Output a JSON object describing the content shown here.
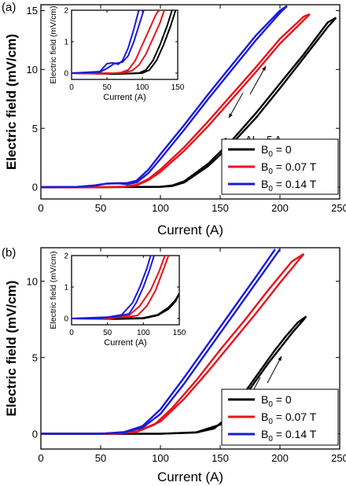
{
  "colors": {
    "b0_0": "#000000",
    "b0_007": "#e8141b",
    "b0_014": "#1a1ad8",
    "axis": "#000000"
  },
  "chart_data": [
    {
      "type": "line",
      "panel_label": "(a)",
      "xlabel": "Current (A)",
      "ylabel": "Electric field (mV/cm)",
      "xlim": [
        0,
        250
      ],
      "ylim": [
        -1,
        15.5
      ],
      "xticks": [
        0,
        50,
        100,
        150,
        200,
        250
      ],
      "yticks": [
        0,
        5,
        10,
        15
      ],
      "legend_position": "bottom-right",
      "annotation": "ΔI ~ 5 A",
      "series": [
        {
          "name": "B0 = 0",
          "color_key": "b0_0",
          "up": [
            [
              0,
              0
            ],
            [
              50,
              0
            ],
            [
              100,
              0.02
            ],
            [
              110,
              0.1
            ],
            [
              120,
              0.4
            ],
            [
              140,
              1.8
            ],
            [
              160,
              3.7
            ],
            [
              180,
              5.9
            ],
            [
              200,
              8.4
            ],
            [
              220,
              11.0
            ],
            [
              240,
              13.6
            ],
            [
              247,
              14.4
            ]
          ],
          "down": [
            [
              247,
              14.4
            ],
            [
              240,
              14.0
            ],
            [
              220,
              11.3
            ],
            [
              200,
              8.8
            ],
            [
              180,
              6.3
            ],
            [
              160,
              4.0
            ],
            [
              140,
              2.0
            ],
            [
              120,
              0.5
            ],
            [
              110,
              0.15
            ],
            [
              100,
              0.04
            ],
            [
              50,
              0
            ],
            [
              0,
              0
            ]
          ]
        },
        {
          "name": "B0 = 0.07 T",
          "color_key": "b0_007",
          "up": [
            [
              0,
              0
            ],
            [
              50,
              0
            ],
            [
              70,
              0.03
            ],
            [
              80,
              0.15
            ],
            [
              90,
              0.6
            ],
            [
              100,
              1.3
            ],
            [
              120,
              3.1
            ],
            [
              140,
              5.2
            ],
            [
              160,
              7.5
            ],
            [
              180,
              9.8
            ],
            [
              200,
              12.2
            ],
            [
              220,
              14.2
            ],
            [
              225,
              14.7
            ]
          ],
          "down": [
            [
              225,
              14.7
            ],
            [
              220,
              14.5
            ],
            [
              200,
              12.6
            ],
            [
              180,
              10.2
            ],
            [
              160,
              7.9
            ],
            [
              140,
              5.6
            ],
            [
              120,
              3.4
            ],
            [
              100,
              1.5
            ],
            [
              90,
              0.7
            ],
            [
              80,
              0.2
            ],
            [
              70,
              0.05
            ],
            [
              50,
              0
            ],
            [
              0,
              0
            ]
          ]
        },
        {
          "name": "B0 = 0.14 T",
          "color_key": "b0_014",
          "up": [
            [
              0,
              0
            ],
            [
              30,
              0.02
            ],
            [
              45,
              0.15
            ],
            [
              55,
              0.3
            ],
            [
              65,
              0.32
            ],
            [
              72,
              0.25
            ],
            [
              80,
              0.4
            ],
            [
              90,
              1.2
            ],
            [
              100,
              2.4
            ],
            [
              120,
              4.9
            ],
            [
              140,
              7.5
            ],
            [
              160,
              10.0
            ],
            [
              180,
              12.5
            ],
            [
              200,
              14.8
            ],
            [
              206,
              15.4
            ]
          ],
          "down": [
            [
              206,
              15.4
            ],
            [
              200,
              15.0
            ],
            [
              180,
              12.9
            ],
            [
              160,
              10.4
            ],
            [
              140,
              7.9
            ],
            [
              120,
              5.3
            ],
            [
              100,
              2.8
            ],
            [
              90,
              1.5
            ],
            [
              80,
              0.55
            ],
            [
              72,
              0.35
            ],
            [
              65,
              0.35
            ],
            [
              55,
              0.3
            ],
            [
              45,
              0.15
            ],
            [
              30,
              0.02
            ],
            [
              0,
              0
            ]
          ]
        }
      ],
      "inset": {
        "xlabel": "Current (A)",
        "ylabel": "Electric field (mV/cm)",
        "xlim": [
          0,
          150
        ],
        "ylim": [
          -0.2,
          2
        ],
        "xticks": [
          0,
          50,
          100,
          150
        ],
        "yticks": [
          0,
          1,
          2
        ],
        "series": [
          {
            "color_key": "b0_0",
            "up": [
              [
                0,
                0
              ],
              [
                60,
                -0.03
              ],
              [
                95,
                0
              ],
              [
                105,
                0.1
              ],
              [
                115,
                0.4
              ],
              [
                125,
                0.9
              ],
              [
                135,
                1.5
              ],
              [
                142,
                2.0
              ]
            ],
            "down": [
              [
                147,
                2.0
              ],
              [
                140,
                1.5
              ],
              [
                130,
                0.9
              ],
              [
                120,
                0.4
              ],
              [
                110,
                0.1
              ],
              [
                100,
                0
              ],
              [
                70,
                -0.02
              ],
              [
                0,
                0
              ]
            ]
          },
          {
            "color_key": "b0_007",
            "up": [
              [
                0,
                0
              ],
              [
                50,
                -0.02
              ],
              [
                70,
                0.02
              ],
              [
                80,
                0.1
              ],
              [
                90,
                0.4
              ],
              [
                100,
                0.9
              ],
              [
                110,
                1.4
              ],
              [
                120,
                1.9
              ],
              [
                124,
                2.0
              ]
            ],
            "down": [
              [
                131,
                2.0
              ],
              [
                125,
                1.6
              ],
              [
                115,
                1.1
              ],
              [
                105,
                0.6
              ],
              [
                95,
                0.25
              ],
              [
                85,
                0.07
              ],
              [
                70,
                0
              ],
              [
                0,
                0
              ]
            ]
          },
          {
            "color_key": "b0_014",
            "up": [
              [
                0,
                0
              ],
              [
                40,
                0.05
              ],
              [
                50,
                0.3
              ],
              [
                58,
                0.33
              ],
              [
                66,
                0.28
              ],
              [
                72,
                0.4
              ],
              [
                80,
                0.8
              ],
              [
                88,
                1.4
              ],
              [
                95,
                2.0
              ]
            ],
            "down": [
              [
                102,
                2.0
              ],
              [
                95,
                1.5
              ],
              [
                88,
                1.0
              ],
              [
                80,
                0.55
              ],
              [
                72,
                0.35
              ],
              [
                60,
                0.3
              ],
              [
                50,
                0.15
              ],
              [
                40,
                0.03
              ],
              [
                0,
                0
              ]
            ]
          }
        ]
      }
    },
    {
      "type": "line",
      "panel_label": "(b)",
      "xlabel": "Current (A)",
      "ylabel": "Electric field (mV/cm)",
      "xlim": [
        0,
        250
      ],
      "ylim": [
        -1,
        12.2
      ],
      "xticks": [
        0,
        50,
        100,
        150,
        200,
        250
      ],
      "yticks": [
        0,
        5,
        10
      ],
      "legend_position": "bottom-right",
      "series": [
        {
          "name": "B0 = 0",
          "color_key": "b0_0",
          "up": [
            [
              0,
              0
            ],
            [
              100,
              0
            ],
            [
              130,
              0.1
            ],
            [
              150,
              0.6
            ],
            [
              160,
              1.3
            ],
            [
              170,
              2.4
            ],
            [
              180,
              3.5
            ],
            [
              190,
              4.6
            ],
            [
              200,
              5.6
            ],
            [
              210,
              6.6
            ],
            [
              220,
              7.5
            ],
            [
              222,
              7.7
            ]
          ],
          "down": [
            [
              222,
              7.7
            ],
            [
              215,
              7.3
            ],
            [
              205,
              6.4
            ],
            [
              195,
              5.4
            ],
            [
              185,
              4.3
            ],
            [
              175,
              3.2
            ],
            [
              165,
              2.1
            ],
            [
              155,
              1.0
            ],
            [
              145,
              0.35
            ],
            [
              130,
              0.08
            ],
            [
              100,
              0
            ],
            [
              0,
              0
            ]
          ]
        },
        {
          "name": "B0 = 0.07 T",
          "color_key": "b0_007",
          "up": [
            [
              0,
              0
            ],
            [
              60,
              0
            ],
            [
              80,
              0.15
            ],
            [
              100,
              0.8
            ],
            [
              120,
              2.3
            ],
            [
              140,
              4.1
            ],
            [
              160,
              6.0
            ],
            [
              180,
              7.9
            ],
            [
              200,
              9.9
            ],
            [
              220,
              11.8
            ]
          ],
          "down": [
            [
              220,
              11.8
            ],
            [
              210,
              11.3
            ],
            [
              190,
              9.4
            ],
            [
              170,
              7.4
            ],
            [
              150,
              5.5
            ],
            [
              130,
              3.5
            ],
            [
              110,
              1.7
            ],
            [
              95,
              0.6
            ],
            [
              80,
              0.12
            ],
            [
              60,
              0
            ],
            [
              0,
              0
            ]
          ]
        },
        {
          "name": "B0 = 0.14 T",
          "color_key": "b0_014",
          "up": [
            [
              0,
              0
            ],
            [
              50,
              0
            ],
            [
              70,
              0.1
            ],
            [
              85,
              0.4
            ],
            [
              100,
              1.3
            ],
            [
              120,
              3.3
            ],
            [
              140,
              5.5
            ],
            [
              160,
              7.7
            ],
            [
              180,
              9.9
            ],
            [
              200,
              12.1
            ]
          ],
          "down": [
            [
              196,
              12.1
            ],
            [
              180,
              10.3
            ],
            [
              160,
              8.1
            ],
            [
              140,
              5.9
            ],
            [
              120,
              3.7
            ],
            [
              100,
              1.6
            ],
            [
              85,
              0.5
            ],
            [
              70,
              0.12
            ],
            [
              50,
              0
            ],
            [
              0,
              0
            ]
          ]
        }
      ],
      "inset": {
        "xlabel": "Current (A)",
        "ylabel": "Electric field (mV/cm)",
        "xlim": [
          0,
          150
        ],
        "ylim": [
          -0.2,
          2
        ],
        "xticks": [
          0,
          50,
          100,
          150
        ],
        "yticks": [
          0,
          1,
          2
        ],
        "series": [
          {
            "color_key": "b0_0",
            "up": [
              [
                0,
                0
              ],
              [
                60,
                -0.02
              ],
              [
                100,
                0
              ],
              [
                120,
                0.1
              ],
              [
                135,
                0.3
              ],
              [
                145,
                0.55
              ],
              [
                150,
                0.8
              ]
            ],
            "down": [
              [
                150,
                0.8
              ],
              [
                145,
                0.6
              ],
              [
                135,
                0.35
              ],
              [
                120,
                0.12
              ],
              [
                100,
                0.02
              ],
              [
                60,
                0
              ],
              [
                0,
                0
              ]
            ]
          },
          {
            "color_key": "b0_007",
            "up": [
              [
                0,
                0
              ],
              [
                50,
                -0.02
              ],
              [
                80,
                0.1
              ],
              [
                95,
                0.4
              ],
              [
                110,
                0.9
              ],
              [
                122,
                1.5
              ],
              [
                130,
                2.0
              ]
            ],
            "down": [
              [
                135,
                2.0
              ],
              [
                127,
                1.5
              ],
              [
                117,
                0.9
              ],
              [
                105,
                0.4
              ],
              [
                92,
                0.1
              ],
              [
                80,
                0.05
              ],
              [
                0,
                0
              ]
            ]
          },
          {
            "color_key": "b0_014",
            "up": [
              [
                0,
                0
              ],
              [
                40,
                0
              ],
              [
                70,
                0.12
              ],
              [
                85,
                0.5
              ],
              [
                95,
                1.0
              ],
              [
                105,
                1.6
              ],
              [
                110,
                2.0
              ]
            ],
            "down": [
              [
                115,
                2.0
              ],
              [
                108,
                1.5
              ],
              [
                100,
                1.0
              ],
              [
                90,
                0.5
              ],
              [
                80,
                0.15
              ],
              [
                60,
                0.05
              ],
              [
                0,
                0
              ]
            ]
          }
        ]
      }
    }
  ]
}
